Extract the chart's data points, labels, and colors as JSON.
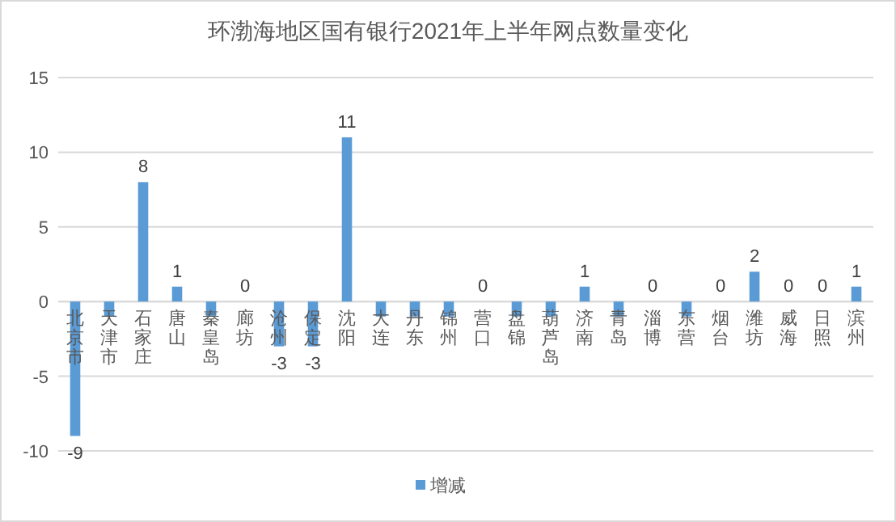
{
  "chart_data": {
    "type": "bar",
    "title": "环渤海地区国有银行2021年上半年网点数量变化",
    "categories": [
      "北京市",
      "天津市",
      "石家庄",
      "唐山",
      "秦皇岛",
      "廊坊",
      "沧州",
      "保定",
      "沈阳",
      "大连",
      "丹东",
      "锦州",
      "营口",
      "盘锦",
      "葫芦岛",
      "济南",
      "青岛",
      "淄博",
      "东营",
      "烟台",
      "潍坊",
      "威海",
      "日照",
      "滨州"
    ],
    "series": [
      {
        "name": "增减",
        "color": "#5b9bd5",
        "values": [
          -9,
          -1,
          8,
          1,
          -1,
          0,
          -3,
          -3,
          11,
          -1,
          -1,
          -1,
          0,
          -1,
          -1,
          1,
          -1,
          0,
          -1,
          0,
          2,
          0,
          0,
          1
        ],
        "value_labels": [
          "-9",
          null,
          "8",
          "1",
          null,
          "0",
          "-3",
          "-3",
          "11",
          null,
          null,
          null,
          "0",
          null,
          null,
          "1",
          null,
          "0",
          null,
          "0",
          "2",
          "0",
          "0",
          "1"
        ]
      }
    ],
    "ylim": [
      -10,
      15
    ],
    "yticks": [
      -10,
      -5,
      0,
      5,
      10,
      15
    ],
    "grid": "y",
    "legend": "bottom"
  }
}
